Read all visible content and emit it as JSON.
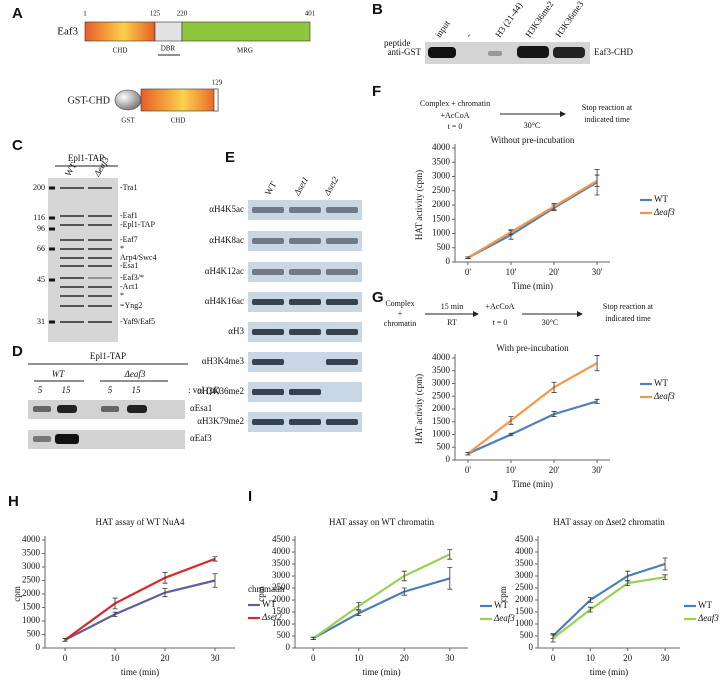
{
  "panels": {
    "A": {
      "label": "A",
      "eaf3": {
        "name": "Eaf3",
        "positions": [
          1,
          125,
          220,
          401
        ],
        "domains": [
          "CHD",
          "DBR",
          "MRG"
        ]
      },
      "gst_chd": {
        "name": "GST-CHD",
        "gst": "GST",
        "domain": "CHD",
        "end": 129
      }
    },
    "B": {
      "label": "B",
      "peptide": "peptide",
      "lanes": [
        "input",
        "-",
        "H3 (21-44)",
        "H3K36me2",
        "H3K36me3"
      ],
      "antibody": "anti-GST",
      "protein": "Eaf3-CHD"
    },
    "C": {
      "label": "C",
      "header": "Epl1-TAP",
      "lanes": [
        "WT",
        "Δeaf3"
      ],
      "markers": [
        200,
        116,
        96,
        66,
        45,
        31
      ],
      "bands": [
        "-Tra1",
        "-Eaf1",
        "-Epl1-TAP",
        "-Eaf7",
        "*",
        "Arp4/Swc4",
        "-Esa1",
        "-Eaf3/*",
        "-Act1",
        "*",
        "=Yng2",
        "-Yaf9/Eaf5"
      ]
    },
    "D": {
      "label": "D",
      "header": "Epl1-TAP",
      "groups": [
        "WT",
        "Δeaf3"
      ],
      "volumes": [
        5,
        15,
        5,
        15
      ],
      "unit": ": vol (µl)",
      "blots": [
        "αEsa1",
        "αEaf3"
      ]
    },
    "E": {
      "label": "E",
      "lanes": [
        "WT",
        "Δset1",
        "Δset2"
      ],
      "blots": [
        "αH4K5ac",
        "αH4K8ac",
        "αH4K12ac",
        "αH4K16ac",
        "αH3",
        "αH3K4me3",
        "αH3K36me2",
        "αH3K79me2"
      ]
    },
    "F": {
      "label": "F",
      "steps": [
        "Complex + chromatin",
        "+AcCoA",
        "t = 0",
        "30°C",
        "Stop reaction at",
        "indicated time"
      ]
    },
    "G": {
      "label": "G",
      "steps": [
        "Complex",
        "+",
        "chromatin",
        "15 min",
        "RT",
        "+AcCoA",
        "t = 0",
        "30°C",
        "Stop reaction at",
        "indicated time"
      ]
    },
    "H": {
      "label": "H"
    },
    "I": {
      "label": "I"
    },
    "J": {
      "label": "J"
    }
  },
  "chart_data": [
    {
      "type": "line",
      "title": "Without pre-incubation",
      "xlabel": "Time (min)",
      "ylabel": "HAT activity (cpm)",
      "x": [
        0,
        10,
        20,
        30
      ],
      "xlim": [
        -3,
        33
      ],
      "ylim": [
        0,
        4000
      ],
      "xticks": [
        {
          "value": 0,
          "label": "0'"
        },
        {
          "value": 10,
          "label": "10'"
        },
        {
          "value": 20,
          "label": "20'"
        },
        {
          "value": 30,
          "label": "30'"
        }
      ],
      "yticks": [
        0,
        500,
        1000,
        1500,
        2000,
        2500,
        3000,
        3500,
        4000
      ],
      "series": [
        {
          "name": "WT",
          "color": "#4f81bd",
          "values": [
            150,
            950,
            1900,
            2800
          ],
          "errors": [
            30,
            150,
            100,
            450
          ]
        },
        {
          "name": "Δeaf3",
          "color": "#f79646",
          "values": [
            150,
            1050,
            1950,
            2850
          ],
          "errors": [
            30,
            80,
            100,
            200
          ]
        }
      ]
    },
    {
      "type": "line",
      "title": "With pre-incubation",
      "xlabel": "Time (min)",
      "ylabel": "HAT activity (cpm)",
      "x": [
        0,
        10,
        20,
        30
      ],
      "xlim": [
        -3,
        33
      ],
      "ylim": [
        0,
        4000
      ],
      "xticks": [
        {
          "value": 0,
          "label": "0'"
        },
        {
          "value": 10,
          "label": "10'"
        },
        {
          "value": 20,
          "label": "20'"
        },
        {
          "value": 30,
          "label": "30'"
        }
      ],
      "yticks": [
        0,
        500,
        1000,
        1500,
        2000,
        2500,
        3000,
        3500,
        4000
      ],
      "series": [
        {
          "name": "WT",
          "color": "#4f81bd",
          "values": [
            250,
            1000,
            1800,
            2300
          ],
          "errors": [
            50,
            50,
            100,
            80
          ]
        },
        {
          "name": "Δeaf3",
          "color": "#f79646",
          "values": [
            250,
            1550,
            2850,
            3800
          ],
          "errors": [
            50,
            150,
            200,
            300
          ]
        }
      ]
    },
    {
      "type": "line",
      "title": "HAT assay of WT NuA4",
      "xlabel": "time (min)",
      "ylabel": "cpm",
      "legend_title": "chromatin",
      "x": [
        0,
        10,
        20,
        30
      ],
      "xlim": [
        -4,
        34
      ],
      "ylim": [
        0,
        4000
      ],
      "xticks": [
        0,
        10,
        20,
        30
      ],
      "yticks": [
        0,
        500,
        1000,
        1500,
        2000,
        2500,
        3000,
        3500,
        4000
      ],
      "series": [
        {
          "name": "WT",
          "color": "#5f5f9f",
          "values": [
            300,
            1250,
            2050,
            2500
          ],
          "errors": [
            50,
            80,
            150,
            250
          ]
        },
        {
          "name": "Δset2",
          "color": "#d7282f",
          "values": [
            300,
            1650,
            2600,
            3300
          ],
          "errors": [
            50,
            200,
            200,
            80
          ]
        }
      ]
    },
    {
      "type": "line",
      "title": "HAT assay on WT chromatin",
      "xlabel": "time (min)",
      "ylabel": "cpm",
      "x": [
        0,
        10,
        20,
        30
      ],
      "xlim": [
        -4,
        34
      ],
      "ylim": [
        0,
        4500
      ],
      "xticks": [
        0,
        10,
        20,
        30
      ],
      "yticks": [
        0,
        500,
        1000,
        1500,
        2000,
        2500,
        3000,
        3500,
        4000,
        4500
      ],
      "series": [
        {
          "name": "WT",
          "color": "#4a7ebb",
          "values": [
            400,
            1450,
            2350,
            2900
          ],
          "errors": [
            50,
            100,
            150,
            450
          ]
        },
        {
          "name": "Δeaf3",
          "color": "#9bcf55",
          "values": [
            400,
            1750,
            3000,
            3900
          ],
          "errors": [
            50,
            150,
            200,
            200
          ]
        }
      ]
    },
    {
      "type": "line",
      "title": "HAT assay on Δset2 chromatin",
      "xlabel": "time (min)",
      "ylabel": "cpm",
      "x": [
        0,
        10,
        20,
        30
      ],
      "xlim": [
        -4,
        34
      ],
      "ylim": [
        0,
        4500
      ],
      "xticks": [
        0,
        10,
        20,
        30
      ],
      "yticks": [
        0,
        500,
        1000,
        1500,
        2000,
        2500,
        3000,
        3500,
        4000,
        4500
      ],
      "series": [
        {
          "name": "WT",
          "color": "#4a7ebb",
          "values": [
            500,
            2000,
            3000,
            3500
          ],
          "errors": [
            100,
            100,
            200,
            250
          ]
        },
        {
          "name": "Δeaf3",
          "color": "#9bcf55",
          "values": [
            400,
            1600,
            2700,
            2950
          ],
          "errors": [
            150,
            100,
            100,
            100
          ]
        }
      ]
    }
  ]
}
